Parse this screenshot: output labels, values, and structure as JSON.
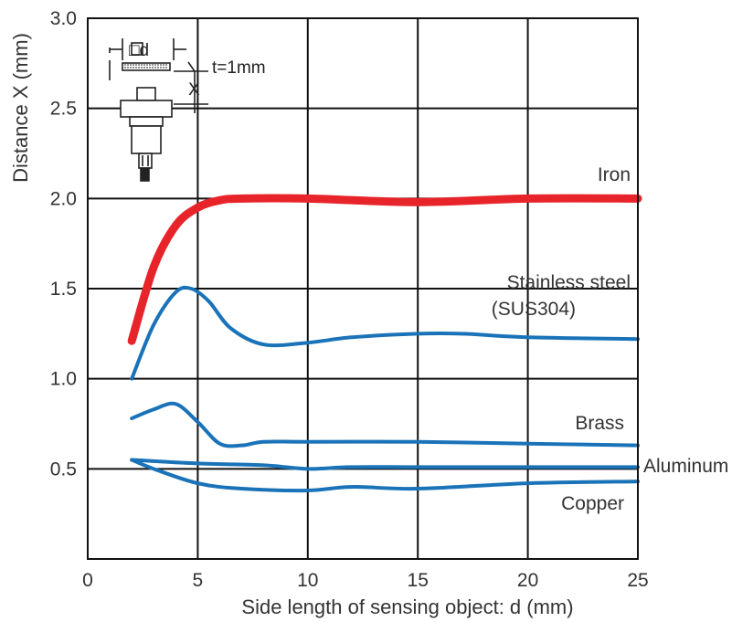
{
  "chart_data": {
    "type": "line",
    "xlabel": "Side length of sensing object: d (mm)",
    "ylabel": "Distance X (mm)",
    "xlim": [
      0,
      25
    ],
    "ylim": [
      0,
      3.0
    ],
    "xticks": [
      0,
      5,
      10,
      15,
      20,
      25
    ],
    "xtick_labels": [
      "0",
      "5",
      "10",
      "15",
      "20",
      "25"
    ],
    "yticks": [
      0.5,
      1.0,
      1.5,
      2.0,
      2.5,
      3.0
    ],
    "ytick_labels": [
      "0.5",
      "1.0",
      "1.5",
      "2.0",
      "2.5",
      "3.0"
    ],
    "grid": true,
    "inset": {
      "square_label": "□d",
      "thickness_label": "t=1mm",
      "distance_label": "X"
    },
    "series": [
      {
        "name": "Iron",
        "color": "#e8242b",
        "emphasis": true,
        "x": [
          2,
          3,
          4,
          5,
          6,
          7,
          10,
          15,
          20,
          25
        ],
        "y": [
          1.21,
          1.62,
          1.85,
          1.95,
          1.99,
          2.0,
          2.0,
          1.98,
          2.0,
          2.0
        ]
      },
      {
        "name": "Stainless steel\n(SUS304)",
        "label_lines": [
          "Stainless steel",
          "(SUS304)"
        ],
        "color": "#1a73b8",
        "x": [
          2,
          3,
          4,
          4.7,
          5.5,
          6.5,
          8,
          10,
          12,
          15,
          17,
          20,
          25
        ],
        "y": [
          1.0,
          1.3,
          1.48,
          1.5,
          1.43,
          1.28,
          1.19,
          1.2,
          1.23,
          1.25,
          1.25,
          1.23,
          1.22
        ],
        "label_color": "#333333"
      },
      {
        "name": "Brass",
        "color": "#1a73b8",
        "x": [
          2,
          3,
          4,
          5,
          6,
          7,
          8,
          10,
          15,
          20,
          25
        ],
        "y": [
          0.78,
          0.83,
          0.86,
          0.76,
          0.64,
          0.63,
          0.65,
          0.65,
          0.65,
          0.64,
          0.63
        ]
      },
      {
        "name": "Aluminum",
        "color": "#1a73b8",
        "x": [
          2,
          5,
          8,
          10,
          12,
          15,
          20,
          25
        ],
        "y": [
          0.55,
          0.53,
          0.52,
          0.5,
          0.51,
          0.51,
          0.51,
          0.51
        ]
      },
      {
        "name": "Copper",
        "color": "#1a73b8",
        "x": [
          2,
          3,
          5,
          7,
          10,
          12,
          15,
          20,
          25
        ],
        "y": [
          0.55,
          0.5,
          0.42,
          0.39,
          0.38,
          0.4,
          0.39,
          0.42,
          0.43
        ]
      }
    ]
  }
}
